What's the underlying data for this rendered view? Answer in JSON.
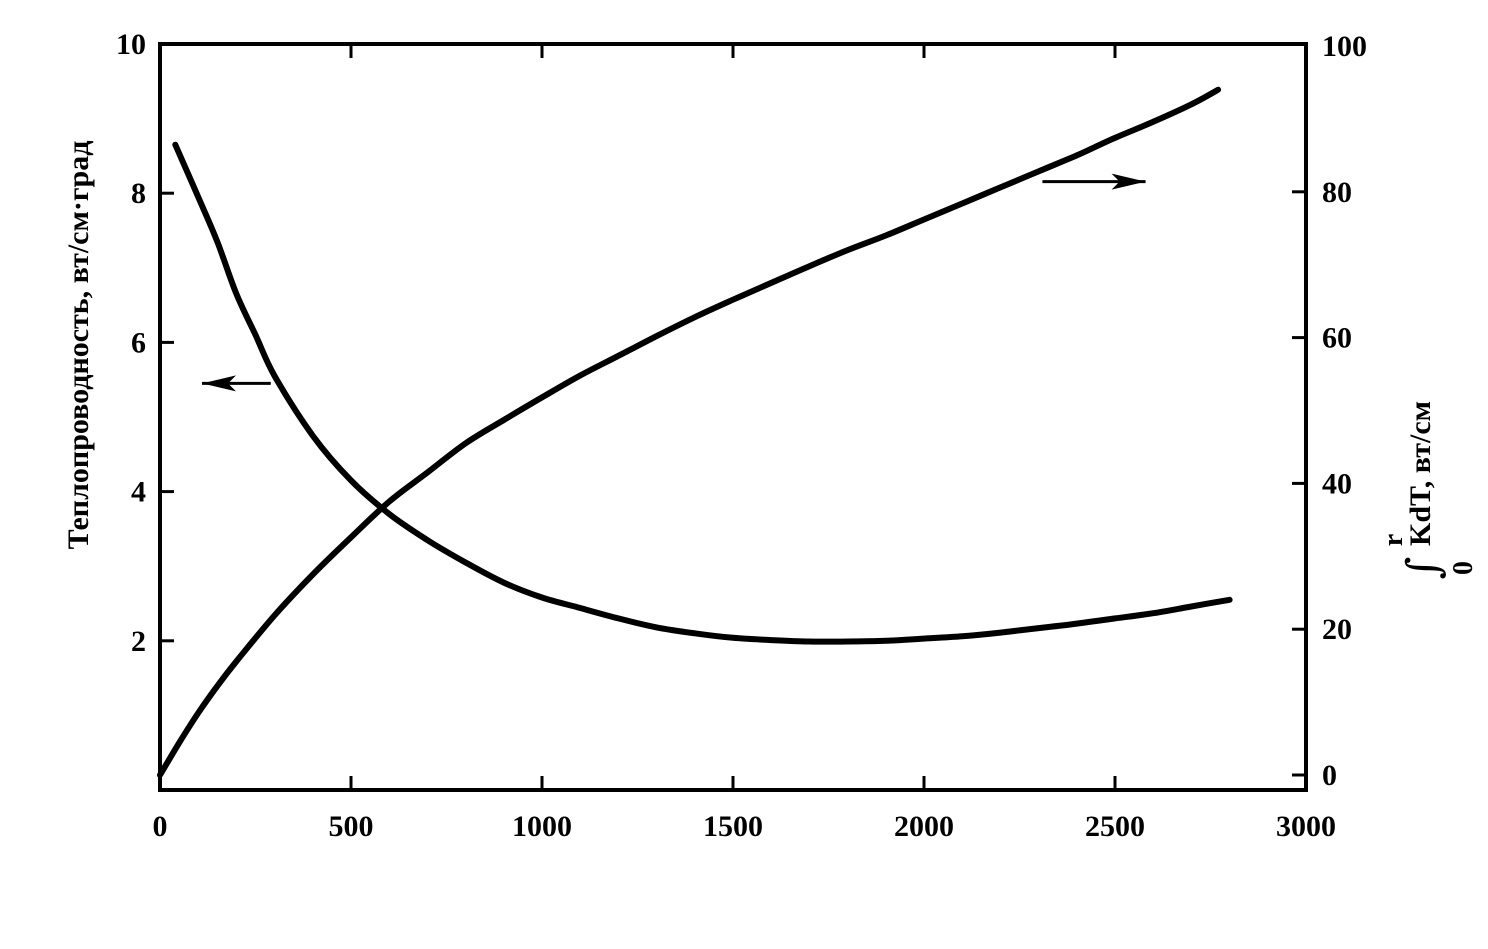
{
  "chart_data": {
    "type": "line",
    "title": "",
    "xlabel": "",
    "xlim": [
      0,
      3000
    ],
    "x_ticks": [
      "0",
      "500",
      "1000",
      "1500",
      "2000",
      "2500",
      "3000"
    ],
    "y_left": {
      "label": "Теплопроводность, вт/см·град",
      "lim": [
        0,
        10
      ],
      "ticks": [
        {
          "value": 2,
          "label": "2"
        },
        {
          "value": 4,
          "label": "4"
        },
        {
          "value": 6,
          "label": "6"
        },
        {
          "value": 8,
          "label": "8"
        },
        {
          "value": 10,
          "label": "10"
        }
      ]
    },
    "y_right": {
      "label_integral_upper": "r",
      "label_integral_lower": "0",
      "label_main": "KdT, вт/см",
      "lim": [
        -2,
        100
      ],
      "ticks": [
        {
          "value": 0,
          "label": "0"
        },
        {
          "value": 20,
          "label": "20"
        },
        {
          "value": 40,
          "label": "40"
        },
        {
          "value": 60,
          "label": "60"
        },
        {
          "value": 80,
          "label": "80"
        },
        {
          "value": 100,
          "label": "100"
        }
      ]
    },
    "grid": false,
    "legend": "none",
    "series": [
      {
        "axis": "left",
        "x": [
          40,
          100,
          150,
          200,
          250,
          300,
          400,
          500,
          600,
          700,
          800,
          900,
          1000,
          1100,
          1200,
          1300,
          1400,
          1500,
          1600,
          1700,
          1800,
          1900,
          2000,
          2100,
          2200,
          2300,
          2400,
          2500,
          2600,
          2700,
          2800
        ],
        "y": [
          8.65,
          7.95,
          7.35,
          6.65,
          6.1,
          5.55,
          4.75,
          4.15,
          3.7,
          3.35,
          3.05,
          2.78,
          2.58,
          2.44,
          2.3,
          2.18,
          2.1,
          2.04,
          2.01,
          1.99,
          1.99,
          2.0,
          2.03,
          2.06,
          2.11,
          2.17,
          2.23,
          2.3,
          2.37,
          2.46,
          2.55
        ]
      },
      {
        "axis": "right",
        "x": [
          0,
          50,
          100,
          150,
          200,
          300,
          400,
          500,
          600,
          700,
          800,
          900,
          1000,
          1100,
          1200,
          1300,
          1400,
          1500,
          1600,
          1700,
          1800,
          1900,
          2000,
          2100,
          2200,
          2300,
          2400,
          2500,
          2600,
          2700,
          2770
        ],
        "y": [
          0,
          4.4,
          8.5,
          12.2,
          15.6,
          21.9,
          27.5,
          32.6,
          37.5,
          41.5,
          45.5,
          48.7,
          51.8,
          54.8,
          57.5,
          60.2,
          62.8,
          65.2,
          67.5,
          69.8,
          72.0,
          74.0,
          76.2,
          78.4,
          80.6,
          82.8,
          85.0,
          87.4,
          89.6,
          92.0,
          94.0
        ]
      }
    ],
    "annotations": [
      {
        "type": "arrow",
        "direction": "left",
        "series": "left",
        "x_from": 290,
        "x_to": 110,
        "y": 5.45
      },
      {
        "type": "arrow",
        "direction": "right",
        "series": "right",
        "x_from": 2310,
        "x_to": 2580,
        "y": 81.4
      }
    ],
    "colors": {
      "line": "#000000",
      "background": "#ffffff"
    }
  }
}
